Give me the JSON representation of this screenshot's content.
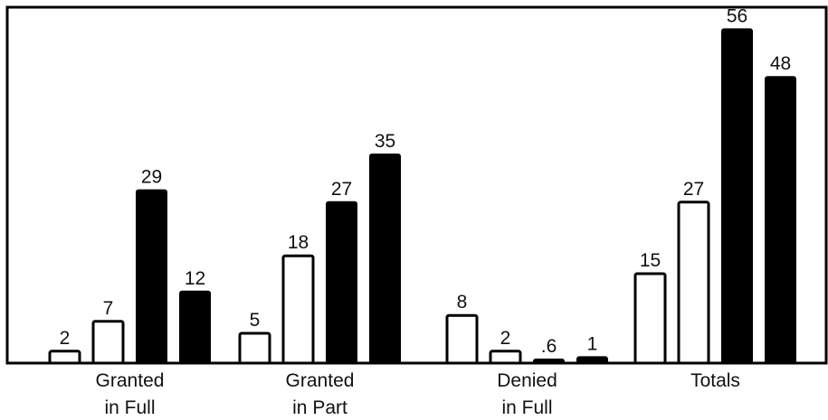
{
  "chart_data": {
    "type": "bar",
    "title": "",
    "xlabel": "",
    "ylabel": "",
    "ylim": [
      0,
      58
    ],
    "categories": [
      [
        "Granted",
        "in Full"
      ],
      [
        "Granted",
        "in Part"
      ],
      [
        "Denied",
        "in Full"
      ],
      [
        "Totals"
      ]
    ],
    "series": [
      {
        "values": [
          2,
          5,
          8,
          15
        ],
        "labels": [
          "2",
          "5",
          "8",
          "15"
        ],
        "style": "hollow"
      },
      {
        "values": [
          7,
          18,
          2,
          27
        ],
        "labels": [
          "7",
          "18",
          "2",
          "27"
        ],
        "style": "hollow"
      },
      {
        "values": [
          29,
          27,
          0.6,
          56
        ],
        "labels": [
          "29",
          "27",
          ".6",
          "56"
        ],
        "style": "filled"
      },
      {
        "values": [
          12,
          35,
          1,
          48
        ],
        "labels": [
          "12",
          "35",
          "1",
          "48"
        ],
        "style": "filled"
      }
    ],
    "colors": {
      "fill": "#000000",
      "stroke": "#000000",
      "hollow": "#ffffff"
    },
    "grid": false,
    "legend": "none"
  }
}
